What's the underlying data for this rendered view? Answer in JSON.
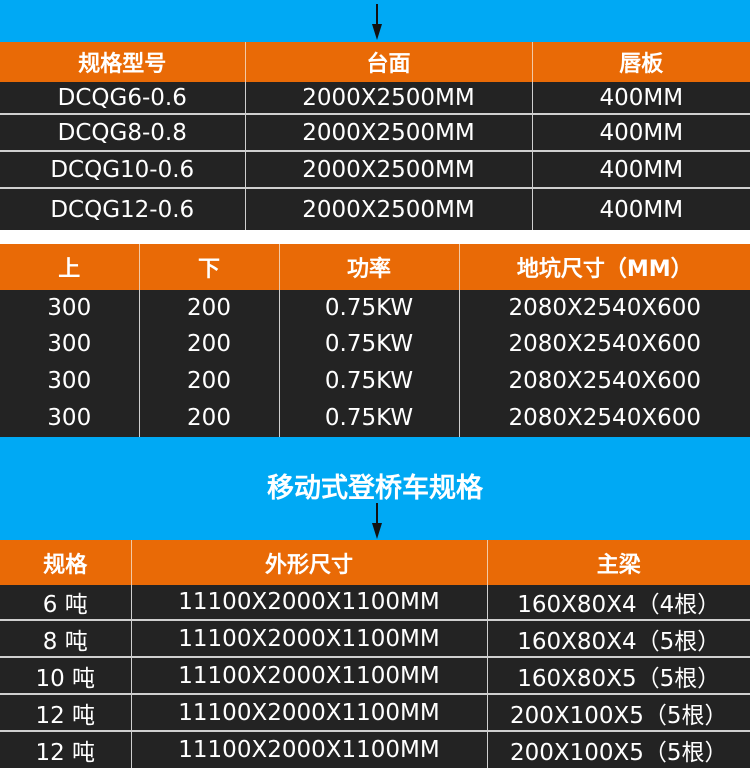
{
  "table1": {
    "headers": [
      "规格型号",
      "台面",
      "唇板"
    ],
    "rows": [
      [
        "DCQG6-0.6",
        "2000X2500MM",
        "400MM"
      ],
      [
        "DCQG8-0.8",
        "2000X2500MM",
        "400MM"
      ],
      [
        "DCQG10-0.6",
        "2000X2500MM",
        "400MM"
      ],
      [
        "DCQG12-0.6",
        "2000X2500MM",
        "400MM"
      ]
    ]
  },
  "table2": {
    "headers": [
      "上",
      "下",
      "功率",
      "地坑尺寸（MM）"
    ],
    "rows": [
      [
        "300",
        "200",
        "0.75KW",
        "2080X2540X600"
      ],
      [
        "300",
        "200",
        "0.75KW",
        "2080X2540X600"
      ],
      [
        "300",
        "200",
        "0.75KW",
        "2080X2540X600"
      ],
      [
        "300",
        "200",
        "0.75KW",
        "2080X2540X600"
      ]
    ]
  },
  "section_title": "移动式登桥车规格",
  "table3": {
    "headers": [
      "规格",
      "外形尺寸",
      "主梁"
    ],
    "rows": [
      [
        "6 吨",
        "11100X2000X1100MM",
        "160X80X4（4根）"
      ],
      [
        "8 吨",
        "11100X2000X1100MM",
        "160X80X4（5根）"
      ],
      [
        "10 吨",
        "11100X2000X1100MM",
        "160X80X5（5根）"
      ],
      [
        "12 吨",
        "11100X2000X1100MM",
        "200X100X5（5根）"
      ],
      [
        "12 吨",
        "11100X2000X1100MM",
        "200X100X5（5根）"
      ]
    ]
  },
  "colors": {
    "blue": "#00a9f4",
    "orange": "#e96a06",
    "row": "#232323"
  }
}
